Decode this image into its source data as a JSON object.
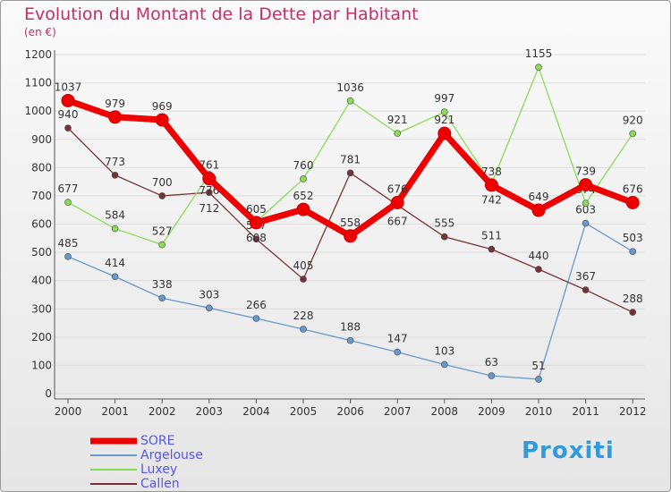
{
  "chart_data": {
    "type": "line",
    "title": "Evolution du Montant de la Dette par Habitant",
    "subtitle": "(en €)",
    "x": [
      "2000",
      "2001",
      "2002",
      "2003",
      "2004",
      "2005",
      "2006",
      "2007",
      "2008",
      "2009",
      "2010",
      "2011",
      "2012"
    ],
    "yticks": [
      "0",
      "100",
      "200",
      "300",
      "400",
      "500",
      "600",
      "700",
      "800",
      "900",
      "1000",
      "1100",
      "1200"
    ],
    "ylim": [
      0,
      1200
    ],
    "series": [
      {
        "name": "SORE",
        "color": "#ee0000",
        "values": [
          1037,
          979,
          969,
          761,
          605,
          652,
          558,
          676,
          921,
          738,
          649,
          739,
          676
        ]
      },
      {
        "name": "Argelouse",
        "color": "#6699cc",
        "values": [
          485,
          414,
          338,
          303,
          266,
          228,
          188,
          147,
          103,
          63,
          51,
          603,
          503
        ]
      },
      {
        "name": "Luxey",
        "color": "#88dd55",
        "values": [
          677,
          584,
          527,
          776,
          608,
          760,
          1036,
          921,
          997,
          742,
          1155,
          674,
          920
        ]
      },
      {
        "name": "Callen",
        "color": "#773333",
        "values": [
          940,
          773,
          700,
          712,
          547,
          405,
          781,
          667,
          555,
          511,
          440,
          367,
          288
        ]
      }
    ]
  },
  "logo": "Proxiti"
}
